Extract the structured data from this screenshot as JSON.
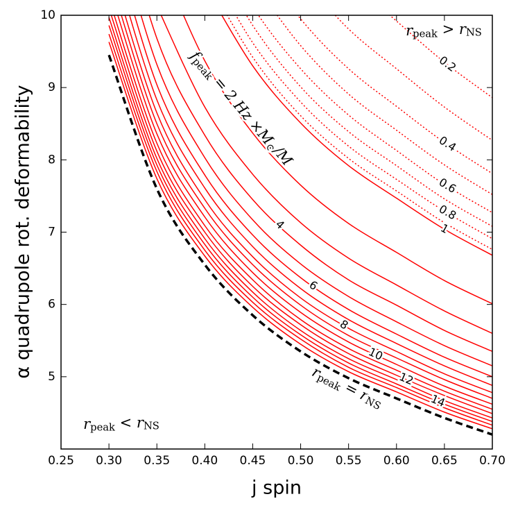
{
  "chart_data": {
    "type": "contour",
    "x_label": "j spin",
    "y_label": "α quadrupole rot. deformability",
    "xlim": [
      0.25,
      0.7
    ],
    "ylim": [
      4,
      10
    ],
    "xticks": [
      0.25,
      {
        "value": 0.3,
        "label": "0.30"
      },
      0.35,
      {
        "value": 0.4,
        "label": "0.40"
      },
      0.45,
      {
        "value": 0.5,
        "label": "0.50"
      },
      0.55,
      {
        "value": 0.6,
        "label": "0.60"
      },
      0.65,
      {
        "value": 0.7,
        "label": "0.70"
      }
    ],
    "yticks": [
      5,
      6,
      7,
      8,
      9,
      10
    ],
    "x": [
      0.3,
      0.35,
      0.4,
      0.45,
      0.5,
      0.55,
      0.6,
      0.65,
      0.7
    ],
    "line_color": "#ff0000",
    "boundary": {
      "color": "#000000",
      "style": "dashed",
      "values": [
        9.45,
        7.6,
        6.55,
        5.85,
        5.35,
        4.98,
        4.7,
        4.43,
        4.2
      ]
    },
    "contours": [
      {
        "style": "dotted",
        "label": 0.2,
        "values": [
          null,
          null,
          null,
          null,
          11.29,
          10.51,
          9.92,
          9.35,
          8.86
        ]
      },
      {
        "style": "dotted",
        "values": [
          null,
          null,
          null,
          null,
          10.54,
          9.81,
          9.26,
          8.73,
          8.27
        ]
      },
      {
        "style": "dotted",
        "label": 0.4,
        "values": [
          null,
          null,
          null,
          10.88,
          9.95,
          9.26,
          8.74,
          8.24,
          7.81
        ]
      },
      {
        "style": "dotted",
        "values": [
          null,
          null,
          null,
          10.47,
          9.58,
          8.91,
          8.41,
          7.93,
          7.52
        ]
      },
      {
        "style": "dotted",
        "label": 0.6,
        "values": [
          null,
          null,
          11.33,
          10.12,
          9.26,
          8.62,
          8.13,
          7.66,
          7.27
        ]
      },
      {
        "style": "dotted",
        "values": [
          null,
          null,
          11.04,
          9.86,
          9.01,
          8.39,
          7.92,
          7.46,
          7.08
        ]
      },
      {
        "style": "dotted",
        "label": 0.8,
        "values": [
          null,
          null,
          10.77,
          9.62,
          8.8,
          8.19,
          7.73,
          7.29,
          6.91
        ]
      },
      {
        "style": "dotted",
        "values": [
          null,
          null,
          10.55,
          9.42,
          8.61,
          8.02,
          7.57,
          7.13,
          6.76
        ]
      },
      {
        "style": "solid",
        "label": 1,
        "values": [
          null,
          null,
          10.41,
          9.3,
          8.51,
          7.92,
          7.47,
          7.04,
          6.68
        ]
      },
      {
        "style": "solid",
        "values": [
          null,
          10.87,
          9.37,
          8.37,
          7.65,
          7.12,
          6.72,
          6.33,
          6.01
        ]
      },
      {
        "style": "solid",
        "values": [
          null,
          10.13,
          8.73,
          7.8,
          7.13,
          6.64,
          6.27,
          5.91,
          5.6
        ]
      },
      {
        "style": "solid",
        "label": 4,
        "values": [
          12.04,
          9.68,
          8.34,
          7.45,
          6.82,
          6.34,
          5.99,
          5.64,
          5.35
        ]
      },
      {
        "style": "solid",
        "values": [
          11.59,
          9.32,
          8.03,
          7.17,
          6.56,
          6.11,
          5.76,
          5.43,
          5.15
        ]
      },
      {
        "style": "solid",
        "label": 6,
        "values": [
          11.25,
          9.04,
          7.79,
          6.96,
          6.37,
          5.93,
          5.59,
          5.27,
          5.0
        ]
      },
      {
        "style": "solid",
        "values": [
          10.98,
          8.83,
          7.61,
          6.8,
          6.22,
          5.79,
          5.46,
          5.15,
          4.88
        ]
      },
      {
        "style": "solid",
        "label": 8,
        "values": [
          10.75,
          8.65,
          7.45,
          6.66,
          6.09,
          5.67,
          5.35,
          5.04,
          4.78
        ]
      },
      {
        "style": "solid",
        "values": [
          10.57,
          8.5,
          7.33,
          6.55,
          5.99,
          5.57,
          5.26,
          4.96,
          4.7
        ]
      },
      {
        "style": "solid",
        "label": 10,
        "values": [
          10.4,
          8.36,
          7.21,
          6.44,
          5.89,
          5.48,
          5.17,
          4.87,
          4.62
        ]
      },
      {
        "style": "solid",
        "values": [
          10.23,
          8.23,
          7.09,
          6.34,
          5.79,
          5.39,
          5.09,
          4.8,
          4.55
        ]
      },
      {
        "style": "solid",
        "label": 12,
        "values": [
          10.1,
          8.12,
          7.0,
          6.25,
          5.72,
          5.32,
          5.02,
          4.74,
          4.49
        ]
      },
      {
        "style": "solid",
        "values": [
          9.97,
          8.02,
          6.91,
          6.17,
          5.64,
          5.25,
          4.96,
          4.67,
          4.43
        ]
      },
      {
        "style": "solid",
        "label": 14,
        "values": [
          9.86,
          7.93,
          6.83,
          6.1,
          5.58,
          5.19,
          4.9,
          4.62,
          4.38
        ]
      },
      {
        "style": "solid",
        "values": [
          9.74,
          7.84,
          6.75,
          6.03,
          5.52,
          5.13,
          4.85,
          4.57,
          4.33
        ]
      },
      {
        "style": "solid",
        "values": [
          9.63,
          7.74,
          6.67,
          5.96,
          5.45,
          5.07,
          4.79,
          4.51,
          4.28
        ]
      }
    ],
    "annotations": [
      {
        "segments": [
          "r",
          "peak",
          " > r",
          "NS"
        ]
      },
      {
        "segments": [
          "r",
          "peak",
          " < r",
          "NS"
        ]
      },
      {
        "segments": [
          "r",
          "peak",
          " = r",
          "NS"
        ]
      },
      {
        "segments": [
          "f",
          "peak",
          " = 2 Hz ×M",
          "⊙",
          "/M"
        ]
      }
    ]
  }
}
